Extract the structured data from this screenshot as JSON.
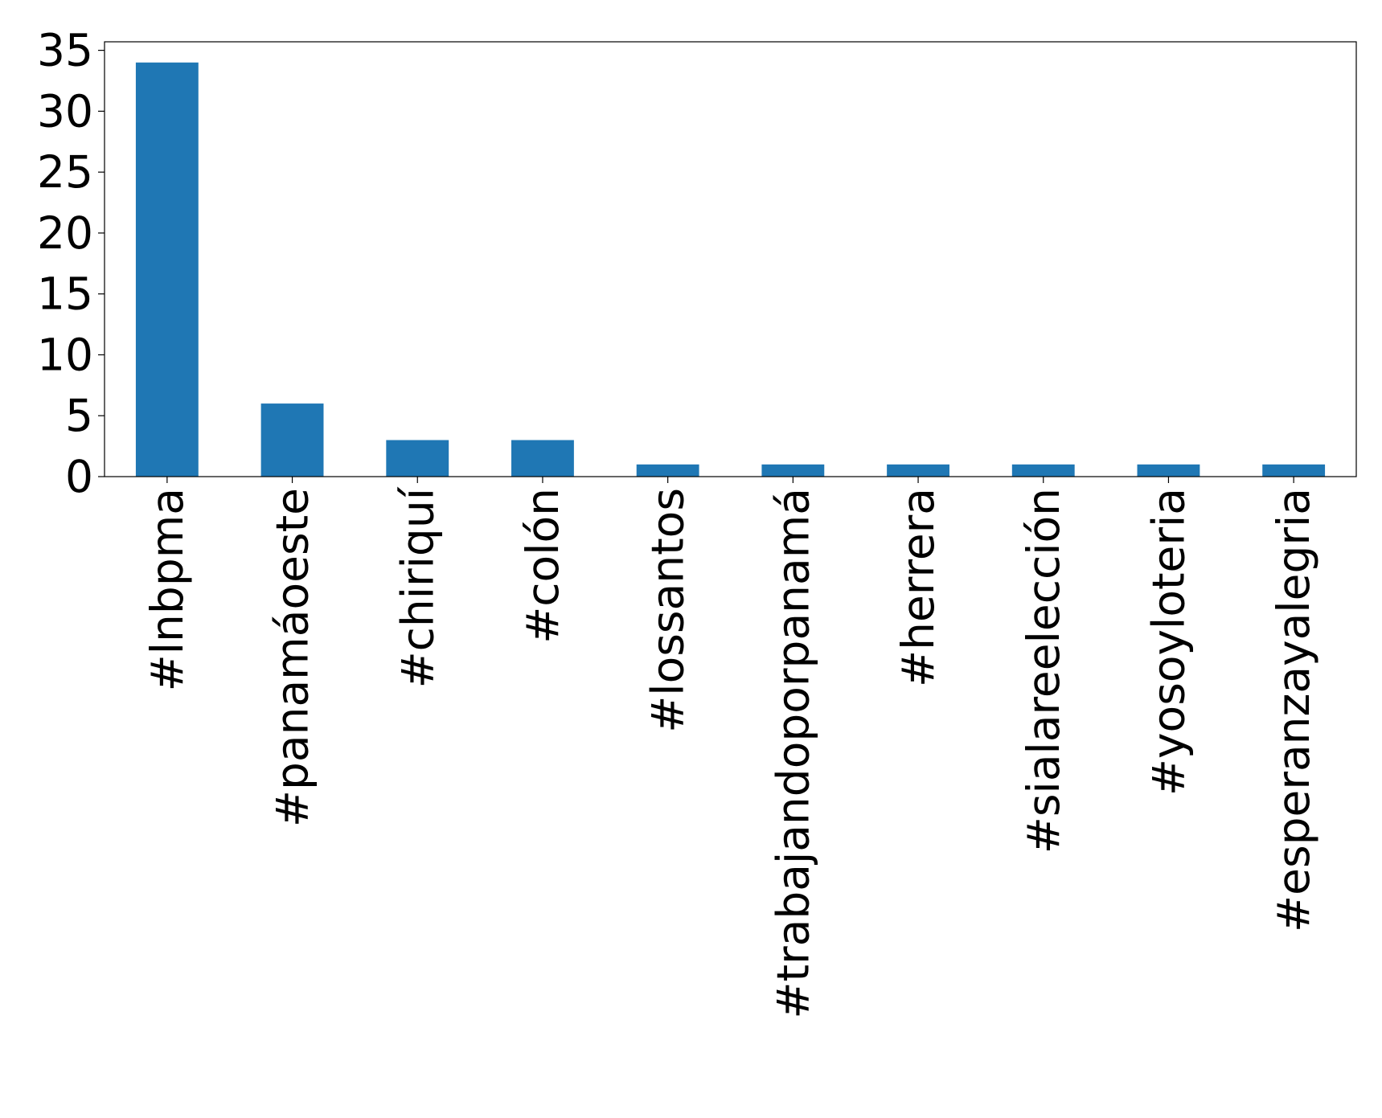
{
  "chart_data": {
    "type": "bar",
    "categories": [
      "#lnbpma",
      "#panamáoeste",
      "#chiriquí",
      "#colón",
      "#lossantos",
      "#trabajandoporpanamá",
      "#herrera",
      "#sialareelección",
      "#yosoyloteria",
      "#esperanzayalegria"
    ],
    "values": [
      34,
      6,
      3,
      3,
      1,
      1,
      1,
      1,
      1,
      1
    ],
    "color": "#1f77b4",
    "ylim": [
      0,
      35.7
    ],
    "yticks": [
      0,
      5,
      10,
      15,
      20,
      25,
      30,
      35
    ],
    "grid": false
  }
}
